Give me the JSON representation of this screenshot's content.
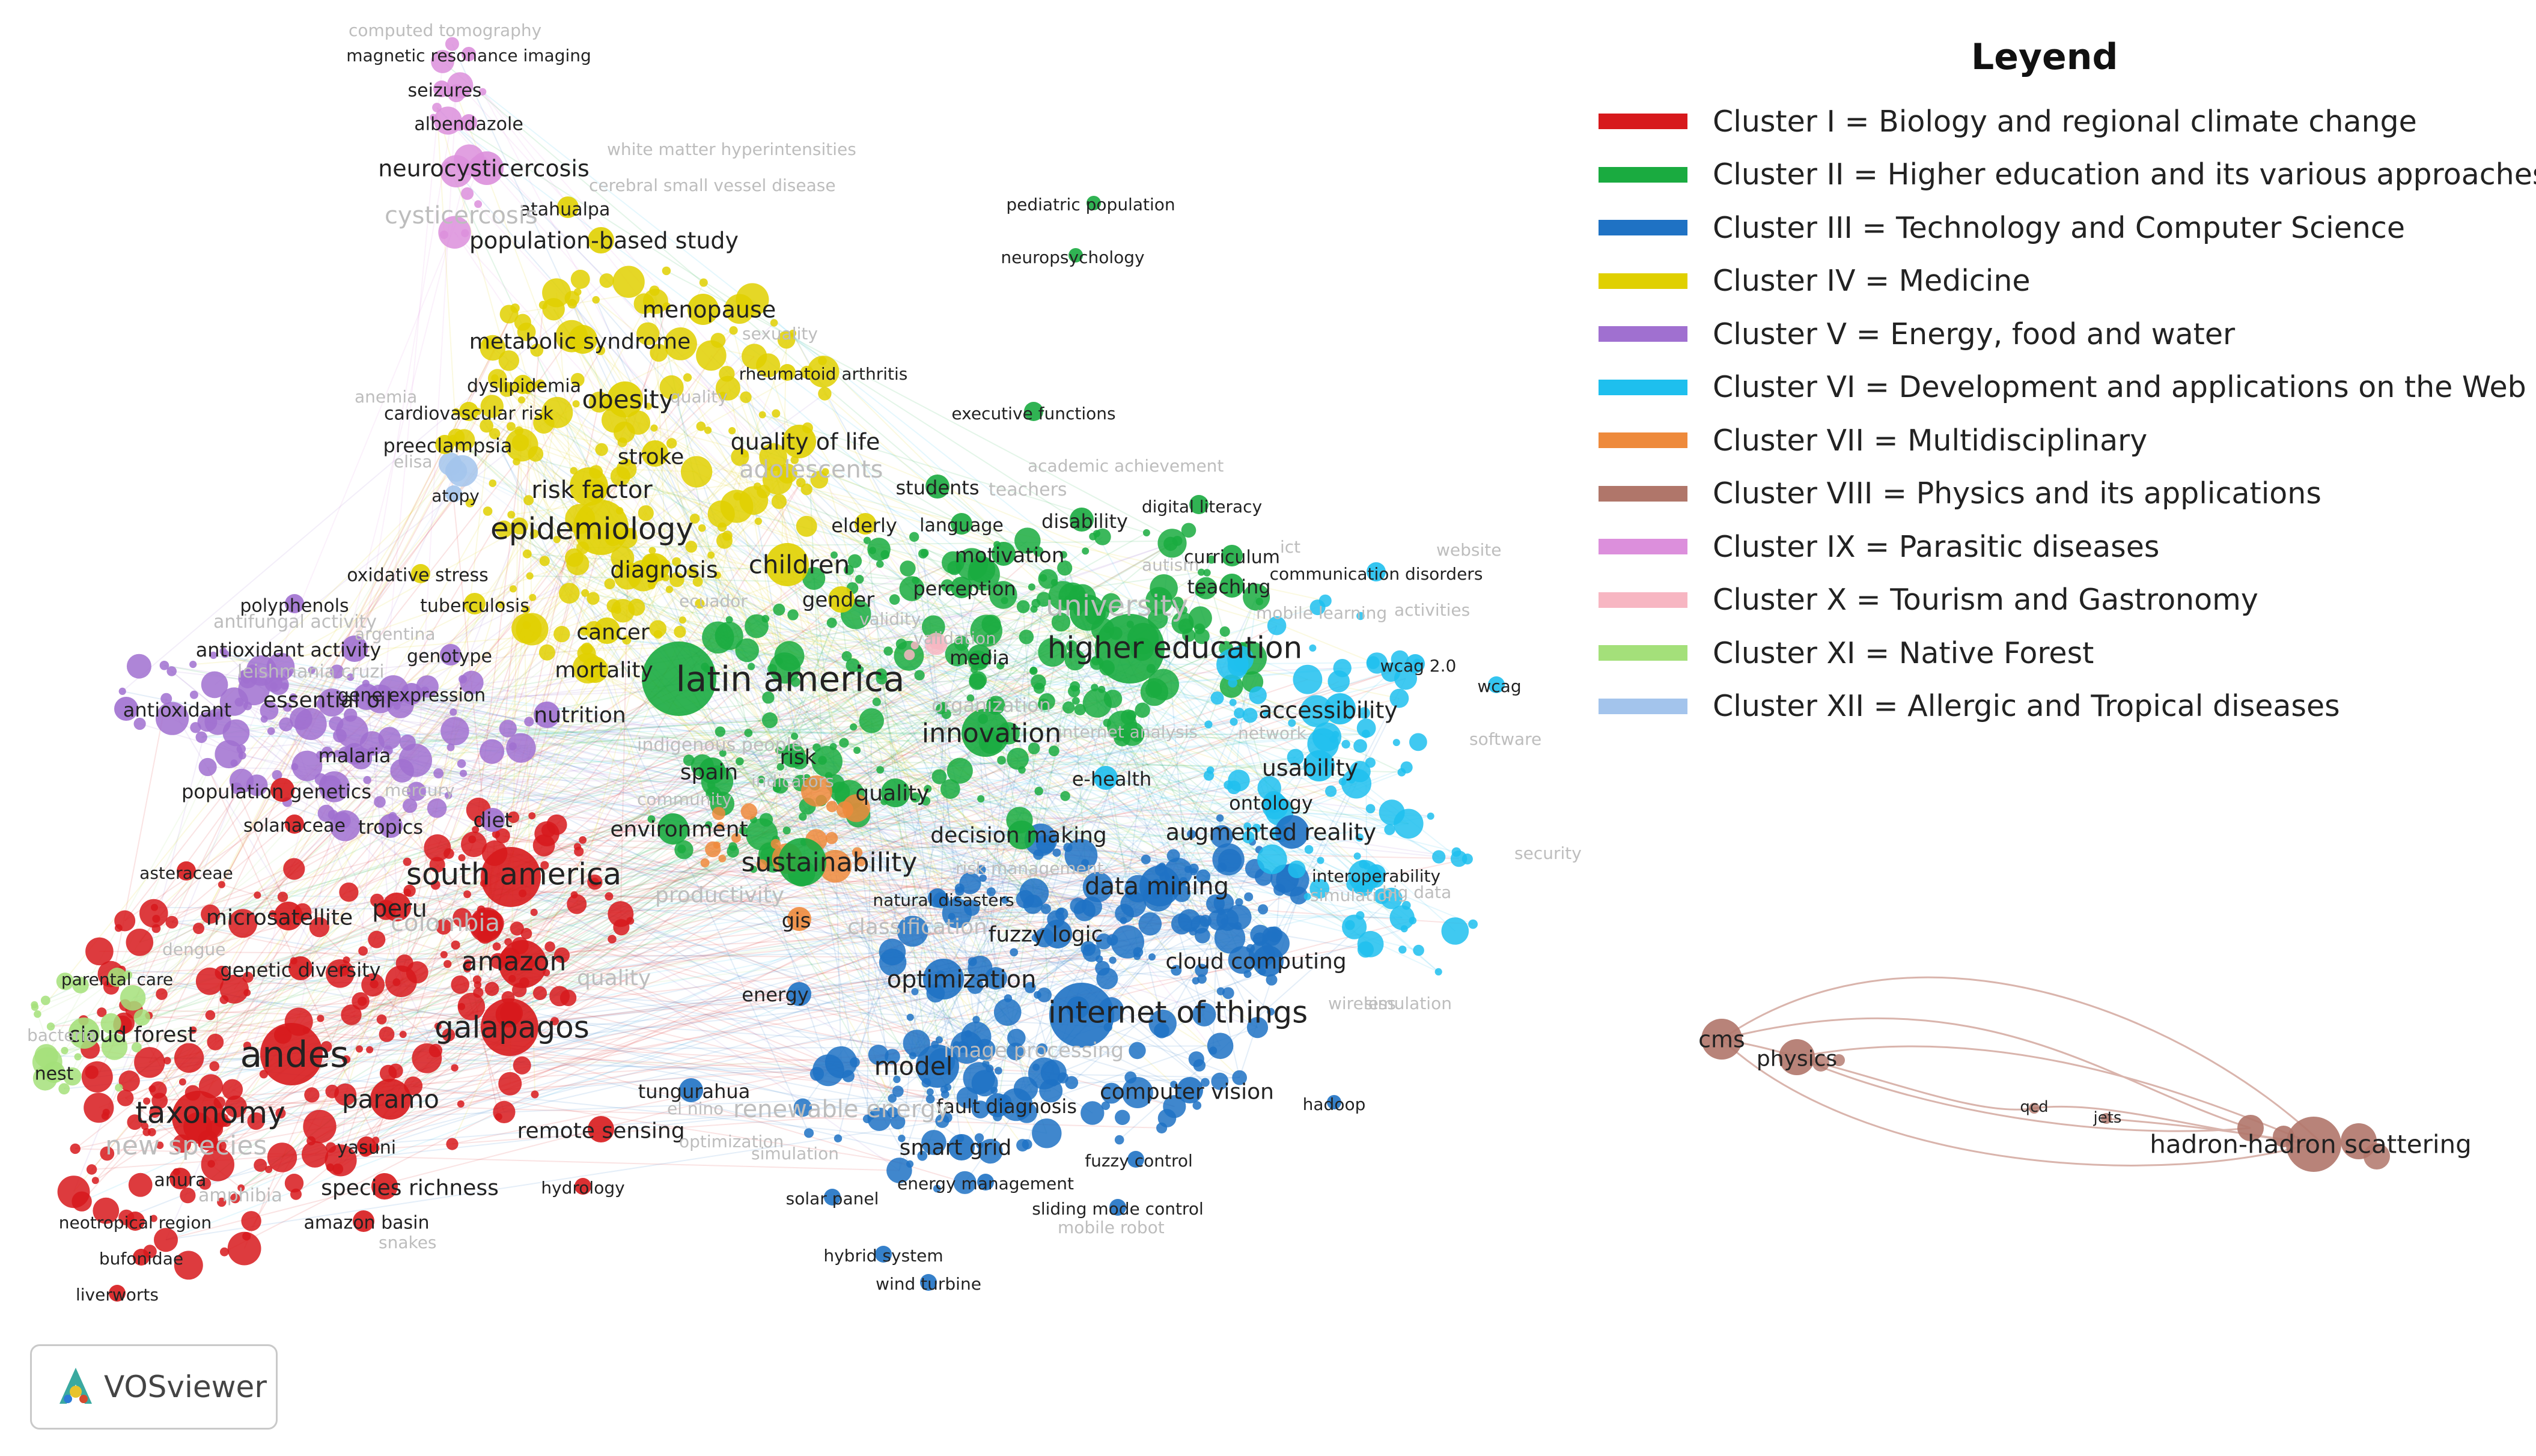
{
  "legend": {
    "title": "Leyend",
    "items": [
      {
        "label": "Cluster I = Biology and regional climate change",
        "color": "#d7191c"
      },
      {
        "label": "Cluster II = Higher education and its various approaches",
        "color": "#1aab40"
      },
      {
        "label": "Cluster III = Technology and Computer Science",
        "color": "#1f72c4"
      },
      {
        "label": "Cluster IV = Medicine",
        "color": "#e0d000"
      },
      {
        "label": "Cluster V = Energy, food and water",
        "color": "#a070d0"
      },
      {
        "label": "Cluster VI = Development and applications on the Web",
        "color": "#1ebfee"
      },
      {
        "label": "Cluster VII = Multidisciplinary",
        "color": "#ee8a3c"
      },
      {
        "label": "Cluster VIII = Physics and its applications",
        "color": "#b0766a"
      },
      {
        "label": "Cluster IX = Parasitic diseases",
        "color": "#dc8fdc"
      },
      {
        "label": "Cluster X = Tourism and Gastronomy",
        "color": "#f7b6c2"
      },
      {
        "label": "Cluster XI = Native Forest",
        "color": "#a4e07a"
      },
      {
        "label": "Cluster XII = Allergic and Tropical diseases",
        "color": "#a3c4ec"
      }
    ]
  },
  "network": {
    "keywords": [
      {
        "label": "latin america",
        "cluster": 2
      },
      {
        "label": "higher education",
        "cluster": 2
      },
      {
        "label": "andes",
        "cluster": 1
      },
      {
        "label": "galapagos",
        "cluster": 1
      },
      {
        "label": "south america",
        "cluster": 1
      },
      {
        "label": "taxonomy",
        "cluster": 1
      },
      {
        "label": "amazon",
        "cluster": 1
      },
      {
        "label": "paramo",
        "cluster": 1
      },
      {
        "label": "internet of things",
        "cluster": 3
      },
      {
        "label": "epidemiology",
        "cluster": 4
      },
      {
        "label": "sustainability",
        "cluster": 2
      },
      {
        "label": "innovation",
        "cluster": 2
      },
      {
        "label": "data mining",
        "cluster": 3
      },
      {
        "label": "model",
        "cluster": 3
      },
      {
        "label": "optimization",
        "cluster": 3
      },
      {
        "label": "children",
        "cluster": 4
      },
      {
        "label": "obesity",
        "cluster": 4
      },
      {
        "label": "risk factor",
        "cluster": 4
      },
      {
        "label": "population-based study",
        "cluster": 4
      },
      {
        "label": "neurocysticercosis",
        "cluster": 9
      },
      {
        "label": "menopause",
        "cluster": 4
      },
      {
        "label": "quality of life",
        "cluster": 4
      },
      {
        "label": "metabolic syndrome",
        "cluster": 4
      },
      {
        "label": "diagnosis",
        "cluster": 4
      },
      {
        "label": "essential oil",
        "cluster": 5
      },
      {
        "label": "nutrition",
        "cluster": 5
      },
      {
        "label": "mortality",
        "cluster": 4
      },
      {
        "label": "cancer",
        "cluster": 4
      },
      {
        "label": "stroke",
        "cluster": 4
      },
      {
        "label": "accessibility",
        "cluster": 6
      },
      {
        "label": "usability",
        "cluster": 6
      },
      {
        "label": "augmented reality",
        "cluster": 3
      },
      {
        "label": "decision making",
        "cluster": 2
      },
      {
        "label": "cloud computing",
        "cluster": 3
      },
      {
        "label": "fuzzy logic",
        "cluster": 3
      },
      {
        "label": "smart grid",
        "cluster": 3
      },
      {
        "label": "computer vision",
        "cluster": 3
      },
      {
        "label": "remote sensing",
        "cluster": 1
      },
      {
        "label": "species richness",
        "cluster": 1
      },
      {
        "label": "microsatellite",
        "cluster": 1
      },
      {
        "label": "cloud forest",
        "cluster": 11
      },
      {
        "label": "environment",
        "cluster": 2
      },
      {
        "label": "quality",
        "cluster": 2
      },
      {
        "label": "motivation",
        "cluster": 2
      },
      {
        "label": "students",
        "cluster": 2
      },
      {
        "label": "gender",
        "cluster": 4
      },
      {
        "label": "elderly",
        "cluster": 4
      },
      {
        "label": "spain",
        "cluster": 2
      },
      {
        "label": "risk",
        "cluster": 2
      },
      {
        "label": "media",
        "cluster": 2
      },
      {
        "label": "e-health",
        "cluster": 6
      },
      {
        "label": "ontology",
        "cluster": 6
      },
      {
        "label": "teaching",
        "cluster": 2
      },
      {
        "label": "disability",
        "cluster": 2
      },
      {
        "label": "curriculum",
        "cluster": 2
      },
      {
        "label": "perception",
        "cluster": 2
      },
      {
        "label": "language",
        "cluster": 2
      },
      {
        "label": "university",
        "cluster": 2
      },
      {
        "label": "tungurahua",
        "cluster": 3
      },
      {
        "label": "fault diagnosis",
        "cluster": 3
      },
      {
        "label": "gis",
        "cluster": 7
      },
      {
        "label": "diet",
        "cluster": 5
      },
      {
        "label": "tropics",
        "cluster": 5
      },
      {
        "label": "peru",
        "cluster": 1
      },
      {
        "label": "malaria",
        "cluster": 5
      },
      {
        "label": "population genetics",
        "cluster": 1
      },
      {
        "label": "genetic diversity",
        "cluster": 1
      },
      {
        "label": "tuberculosis",
        "cluster": 4
      },
      {
        "label": "antioxidant activity",
        "cluster": 5
      },
      {
        "label": "antioxidant",
        "cluster": 5
      },
      {
        "label": "polyphenols",
        "cluster": 5
      },
      {
        "label": "gene expression",
        "cluster": 5
      },
      {
        "label": "genotype",
        "cluster": 5
      },
      {
        "label": "oxidative stress",
        "cluster": 4
      },
      {
        "label": "preeclampsia",
        "cluster": 4
      },
      {
        "label": "cardiovascular risk",
        "cluster": 4
      },
      {
        "label": "dyslipidemia",
        "cluster": 4
      },
      {
        "label": "rheumatoid arthritis",
        "cluster": 4
      },
      {
        "label": "executive functions",
        "cluster": 2
      },
      {
        "label": "digital literacy",
        "cluster": 2
      },
      {
        "label": "pediatric population",
        "cluster": 2
      },
      {
        "label": "neuropsychology",
        "cluster": 2
      },
      {
        "label": "communication disorders",
        "cluster": 6
      },
      {
        "label": "interoperability",
        "cluster": 6
      },
      {
        "label": "wcag 2.0",
        "cluster": 6
      },
      {
        "label": "wcag",
        "cluster": 6
      },
      {
        "label": "hadoop",
        "cluster": 3
      },
      {
        "label": "fuzzy control",
        "cluster": 3
      },
      {
        "label": "sliding mode control",
        "cluster": 3
      },
      {
        "label": "energy management",
        "cluster": 3
      },
      {
        "label": "solar panel",
        "cluster": 3
      },
      {
        "label": "hybrid system",
        "cluster": 3
      },
      {
        "label": "wind turbine",
        "cluster": 3
      },
      {
        "label": "energy",
        "cluster": 3
      },
      {
        "label": "natural disasters",
        "cluster": 3
      },
      {
        "label": "asteraceae",
        "cluster": 1
      },
      {
        "label": "parental care",
        "cluster": 11
      },
      {
        "label": "nest",
        "cluster": 11
      },
      {
        "label": "anura",
        "cluster": 1
      },
      {
        "label": "neotropical region",
        "cluster": 1
      },
      {
        "label": "amazon basin",
        "cluster": 1
      },
      {
        "label": "bufonidae",
        "cluster": 1
      },
      {
        "label": "liverworts",
        "cluster": 1
      },
      {
        "label": "hydrology",
        "cluster": 1
      },
      {
        "label": "yasuni",
        "cluster": 1
      },
      {
        "label": "solanaceae",
        "cluster": 1
      },
      {
        "label": "seizures",
        "cluster": 9
      },
      {
        "label": "albendazole",
        "cluster": 9
      },
      {
        "label": "magnetic resonance imaging",
        "cluster": 9
      },
      {
        "label": "atahualpa",
        "cluster": 4
      },
      {
        "label": "atopy",
        "cluster": 12
      },
      {
        "label": "cms",
        "cluster": 8
      },
      {
        "label": "physics",
        "cluster": 8
      },
      {
        "label": "hadron-hadron scattering",
        "cluster": 8
      },
      {
        "label": "qcd",
        "cluster": 8
      },
      {
        "label": "jets",
        "cluster": 8
      }
    ]
  },
  "branding": {
    "name": "VOSviewer",
    "icon": "vosviewer-logo-icon"
  }
}
